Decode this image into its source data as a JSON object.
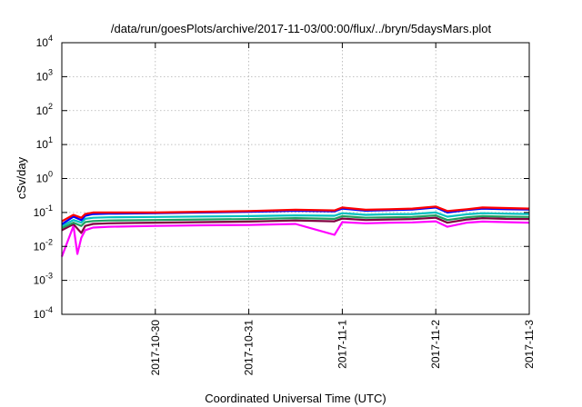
{
  "chart_data": {
    "type": "line",
    "title": "/data/run/goesPlots/archive/2017-11-03/00:00/flux/../bryn/5daysMars.plot",
    "xlabel": "Coordinated Universal Time (UTC)",
    "ylabel": "cSv/day",
    "yscale": "log",
    "ylim": [
      0.0001,
      10000
    ],
    "xlim": [
      "2017-10-29T00:00",
      "2017-11-03T00:00"
    ],
    "yticks": [
      {
        "base": "10",
        "exp": "-4"
      },
      {
        "base": "10",
        "exp": "-3"
      },
      {
        "base": "10",
        "exp": "-2"
      },
      {
        "base": "10",
        "exp": "-1"
      },
      {
        "base": "10",
        "exp": "0"
      },
      {
        "base": "10",
        "exp": "1"
      },
      {
        "base": "10",
        "exp": "2"
      },
      {
        "base": "10",
        "exp": "3"
      },
      {
        "base": "10",
        "exp": "4"
      }
    ],
    "xticks": [
      "2017-10-30",
      "2017-10-31",
      "2017-11-1",
      "2017-11-2",
      "2017-11-3"
    ],
    "grid": true,
    "legend": "none",
    "series": [
      {
        "color": "#ff0000",
        "x": [
          "2017-10-29T00:00",
          "2017-10-29T03:00",
          "2017-10-29T05:00",
          "2017-10-29T06:00",
          "2017-10-29T08:00",
          "2017-10-29T12:00",
          "2017-10-30T00:00",
          "2017-10-30T12:00",
          "2017-10-31T00:00",
          "2017-10-31T12:00",
          "2017-10-31T22:00",
          "2017-11-01T00:00",
          "2017-11-01T06:00",
          "2017-11-01T12:00",
          "2017-11-01T18:00",
          "2017-11-02T00:00",
          "2017-11-02T03:00",
          "2017-11-02T08:00",
          "2017-11-02T12:00",
          "2017-11-02T18:00",
          "2017-11-03T00:00"
        ],
        "values": [
          0.055,
          0.085,
          0.07,
          0.09,
          0.1,
          0.1,
          0.1,
          0.105,
          0.11,
          0.12,
          0.115,
          0.14,
          0.12,
          0.125,
          0.13,
          0.15,
          0.11,
          0.125,
          0.14,
          0.135,
          0.13
        ]
      },
      {
        "color": "#0000ff",
        "x": [
          "2017-10-29T00:00",
          "2017-10-29T03:00",
          "2017-10-29T05:00",
          "2017-10-29T06:00",
          "2017-10-29T08:00",
          "2017-10-29T12:00",
          "2017-10-30T00:00",
          "2017-10-30T12:00",
          "2017-10-31T00:00",
          "2017-10-31T12:00",
          "2017-10-31T22:00",
          "2017-11-01T00:00",
          "2017-11-01T06:00",
          "2017-11-01T12:00",
          "2017-11-01T18:00",
          "2017-11-02T00:00",
          "2017-11-02T03:00",
          "2017-11-02T08:00",
          "2017-11-02T12:00",
          "2017-11-02T18:00",
          "2017-11-03T00:00"
        ],
        "values": [
          0.045,
          0.075,
          0.06,
          0.08,
          0.09,
          0.092,
          0.095,
          0.1,
          0.105,
          0.112,
          0.108,
          0.13,
          0.113,
          0.117,
          0.122,
          0.14,
          0.1,
          0.118,
          0.13,
          0.125,
          0.122
        ]
      },
      {
        "color": "#00c0c0",
        "x": [
          "2017-10-29T00:00",
          "2017-10-29T03:00",
          "2017-10-29T05:00",
          "2017-10-29T06:00",
          "2017-10-29T08:00",
          "2017-10-29T12:00",
          "2017-10-30T00:00",
          "2017-10-30T12:00",
          "2017-10-31T00:00",
          "2017-10-31T12:00",
          "2017-10-31T22:00",
          "2017-11-01T00:00",
          "2017-11-01T06:00",
          "2017-11-01T12:00",
          "2017-11-01T18:00",
          "2017-11-02T00:00",
          "2017-11-02T03:00",
          "2017-11-02T08:00",
          "2017-11-02T12:00",
          "2017-11-02T18:00",
          "2017-11-03T00:00"
        ],
        "values": [
          0.04,
          0.06,
          0.05,
          0.065,
          0.07,
          0.072,
          0.074,
          0.076,
          0.078,
          0.082,
          0.08,
          0.095,
          0.085,
          0.088,
          0.09,
          0.1,
          0.075,
          0.088,
          0.095,
          0.092,
          0.09
        ]
      },
      {
        "color": "#20a060",
        "x": [
          "2017-10-29T00:00",
          "2017-10-29T03:00",
          "2017-10-29T05:00",
          "2017-10-29T06:00",
          "2017-10-29T08:00",
          "2017-10-29T12:00",
          "2017-10-30T00:00",
          "2017-10-30T12:00",
          "2017-10-31T00:00",
          "2017-10-31T12:00",
          "2017-10-31T22:00",
          "2017-11-01T00:00",
          "2017-11-01T06:00",
          "2017-11-01T12:00",
          "2017-11-01T18:00",
          "2017-11-02T00:00",
          "2017-11-02T03:00",
          "2017-11-02T08:00",
          "2017-11-02T12:00",
          "2017-11-02T18:00",
          "2017-11-03T00:00"
        ],
        "values": [
          0.035,
          0.05,
          0.04,
          0.052,
          0.056,
          0.058,
          0.06,
          0.062,
          0.064,
          0.068,
          0.065,
          0.078,
          0.07,
          0.072,
          0.074,
          0.082,
          0.06,
          0.072,
          0.078,
          0.075,
          0.074
        ]
      },
      {
        "color": "#800040",
        "x": [
          "2017-10-29T00:00",
          "2017-10-29T03:00",
          "2017-10-29T05:00",
          "2017-10-29T06:00",
          "2017-10-29T08:00",
          "2017-10-29T12:00",
          "2017-10-30T00:00",
          "2017-10-30T12:00",
          "2017-10-31T00:00",
          "2017-10-31T12:00",
          "2017-10-31T22:00",
          "2017-11-01T00:00",
          "2017-11-01T06:00",
          "2017-11-01T12:00",
          "2017-11-01T18:00",
          "2017-11-02T00:00",
          "2017-11-02T03:00",
          "2017-11-02T08:00",
          "2017-11-02T12:00",
          "2017-11-02T18:00",
          "2017-11-03T00:00"
        ],
        "values": [
          0.03,
          0.045,
          0.025,
          0.04,
          0.046,
          0.048,
          0.05,
          0.052,
          0.054,
          0.058,
          0.055,
          0.066,
          0.06,
          0.062,
          0.064,
          0.07,
          0.05,
          0.062,
          0.068,
          0.065,
          0.064
        ]
      },
      {
        "color": "#ff00ff",
        "x": [
          "2017-10-29T00:00",
          "2017-10-29T03:00",
          "2017-10-29T04:00",
          "2017-10-29T05:00",
          "2017-10-29T06:00",
          "2017-10-29T08:00",
          "2017-10-29T12:00",
          "2017-10-30T00:00",
          "2017-10-30T12:00",
          "2017-10-31T00:00",
          "2017-10-31T12:00",
          "2017-10-31T22:00",
          "2017-11-01T00:00",
          "2017-11-01T06:00",
          "2017-11-01T12:00",
          "2017-11-01T18:00",
          "2017-11-02T00:00",
          "2017-11-02T03:00",
          "2017-11-02T08:00",
          "2017-11-02T12:00",
          "2017-11-02T18:00",
          "2017-11-03T00:00"
        ],
        "values": [
          0.005,
          0.04,
          0.006,
          0.018,
          0.03,
          0.036,
          0.038,
          0.04,
          0.042,
          0.043,
          0.046,
          0.022,
          0.052,
          0.048,
          0.05,
          0.051,
          0.055,
          0.038,
          0.05,
          0.054,
          0.052,
          0.05
        ]
      }
    ]
  }
}
